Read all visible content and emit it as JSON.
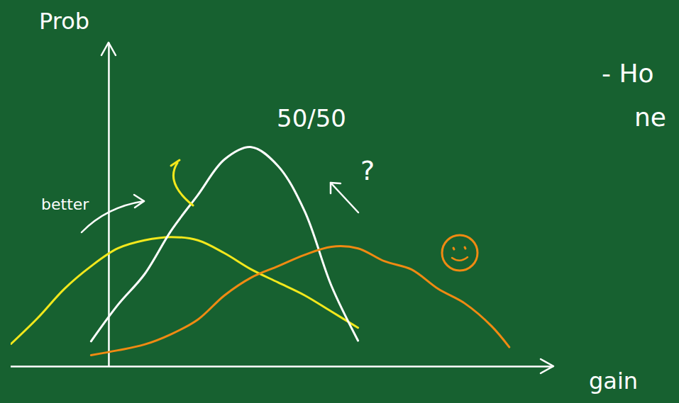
{
  "chart_data": {
    "type": "line",
    "xlabel": "gain",
    "ylabel": "Prob",
    "x": [
      -22,
      -16,
      -10,
      -4,
      2,
      8,
      14,
      20,
      26,
      32,
      38,
      44,
      50,
      56,
      62,
      68,
      74,
      80,
      86,
      90
    ],
    "series": [
      {
        "color": "#f2e81c",
        "values": [
          7,
          15,
          24,
          31,
          36.5,
          39,
          40,
          39,
          35,
          30,
          26,
          22,
          17,
          12,
          null,
          null,
          null,
          null,
          null,
          null
        ]
      },
      {
        "name": "50/50",
        "color": "#ffffff",
        "values": [
          null,
          null,
          null,
          7.8,
          19,
          28.5,
          42,
          53,
          64,
          67.8,
          62,
          48,
          25,
          8,
          null,
          null,
          null,
          null,
          null,
          null
        ]
      },
      {
        "color": "#f08a12",
        "values": [
          null,
          null,
          null,
          3.5,
          5,
          6.8,
          10,
          14.5,
          22,
          27.5,
          31,
          34.5,
          37,
          36.5,
          32.5,
          30,
          24,
          19.5,
          12.5,
          6
        ]
      }
    ],
    "xlim": [
      -22,
      100
    ],
    "ylim": [
      0,
      100
    ],
    "xticks": [
      0
    ],
    "yticks": [
      0
    ],
    "tick_labels": false,
    "annotations": [
      "better",
      "?",
      "- Ho",
      "ne"
    ]
  }
}
